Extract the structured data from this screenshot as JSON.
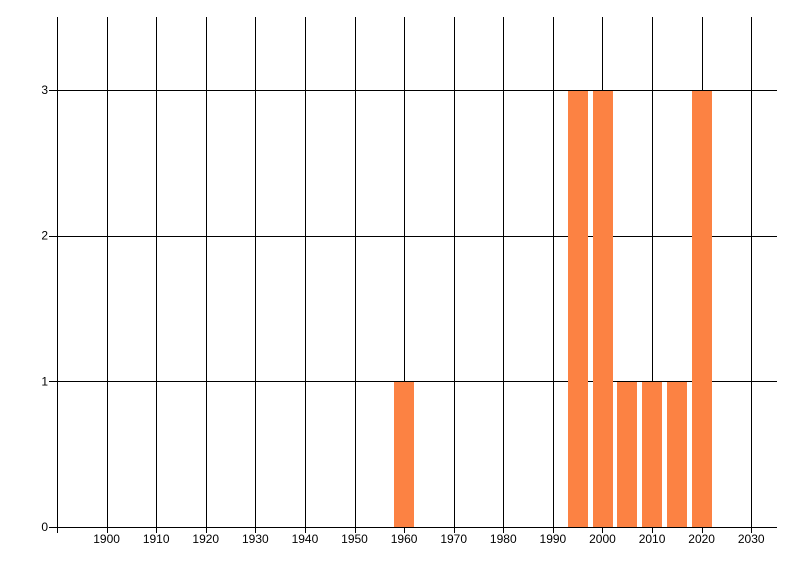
{
  "chart_data": {
    "type": "bar",
    "title": "",
    "xlabel": "",
    "ylabel": "",
    "x": [
      1960,
      1995,
      2000,
      2005,
      2010,
      2015,
      2020
    ],
    "values": [
      1,
      3,
      3,
      1,
      1,
      1,
      3
    ],
    "bar_width_years": 4,
    "xlim": [
      1890,
      2035.2
    ],
    "ylim": [
      0,
      3.5
    ],
    "x_gridline_years": [
      1890,
      1900,
      1910,
      1920,
      1930,
      1940,
      1950,
      1960,
      1970,
      1980,
      1990,
      2000,
      2010,
      2020,
      2030
    ],
    "x_tick_labels": [
      "1900",
      "1910",
      "1920",
      "1930",
      "1940",
      "1950",
      "1960",
      "1970",
      "1980",
      "1990",
      "2000",
      "2010",
      "2020",
      "2030"
    ],
    "x_tick_years": [
      1900,
      1910,
      1920,
      1930,
      1940,
      1950,
      1960,
      1970,
      1980,
      1990,
      2000,
      2010,
      2020,
      2030
    ],
    "y_tick_labels": [
      "0",
      "1",
      "2",
      "3"
    ],
    "y_tick_values": [
      0,
      1,
      2,
      3
    ],
    "grid": true,
    "legend": false,
    "colors": {
      "bar": "#fc8243",
      "grid": "#000000",
      "text": "#000000",
      "background": "#ffffff"
    }
  }
}
